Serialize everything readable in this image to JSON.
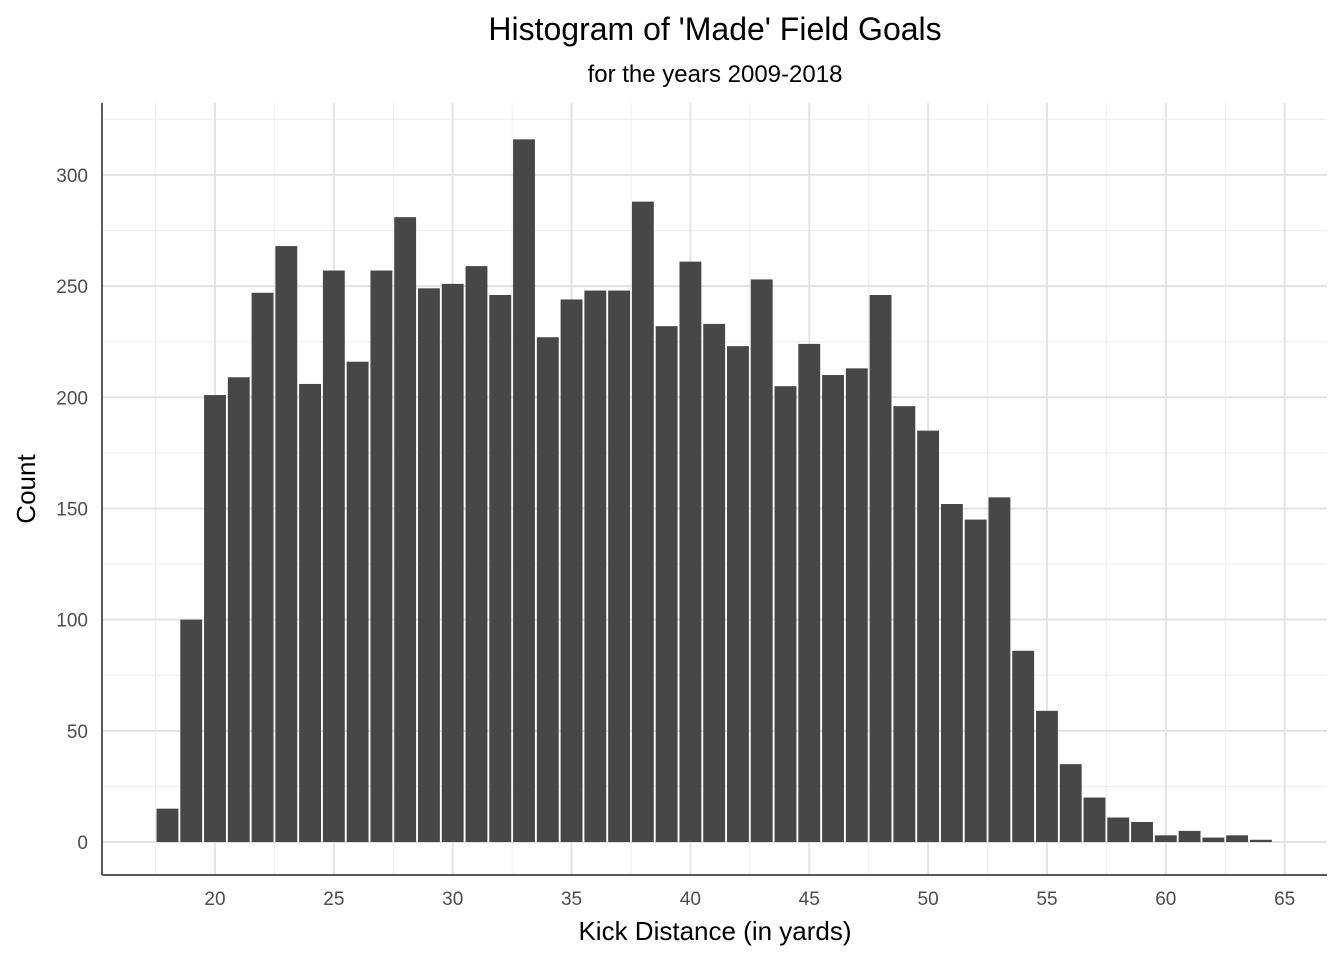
{
  "chart_data": {
    "type": "bar",
    "title": "Histogram of 'Made' Field Goals",
    "subtitle": "for the years 2009-2018",
    "xlabel": "Kick Distance (in yards)",
    "ylabel": "Count",
    "bar_color": "#474747",
    "grid": true,
    "xlim": [
      15.5,
      66.5
    ],
    "ylim": [
      -15,
      330
    ],
    "x_ticks": [
      20,
      25,
      30,
      35,
      40,
      45,
      50,
      55,
      60,
      65
    ],
    "y_ticks": [
      0,
      50,
      100,
      150,
      200,
      250,
      300
    ],
    "x": [
      18,
      19,
      20,
      21,
      22,
      23,
      24,
      25,
      26,
      27,
      28,
      29,
      30,
      31,
      32,
      33,
      34,
      35,
      36,
      37,
      38,
      39,
      40,
      41,
      42,
      43,
      44,
      45,
      46,
      47,
      48,
      49,
      50,
      51,
      52,
      53,
      54,
      55,
      56,
      57,
      58,
      59,
      60,
      61,
      62,
      63,
      64
    ],
    "values": [
      15,
      100,
      201,
      209,
      247,
      268,
      206,
      257,
      216,
      257,
      281,
      249,
      251,
      259,
      246,
      316,
      227,
      244,
      248,
      248,
      288,
      232,
      261,
      233,
      223,
      253,
      205,
      224,
      210,
      213,
      246,
      196,
      185,
      152,
      145,
      155,
      86,
      59,
      35,
      20,
      11,
      9,
      3,
      5,
      2,
      3,
      1
    ]
  }
}
